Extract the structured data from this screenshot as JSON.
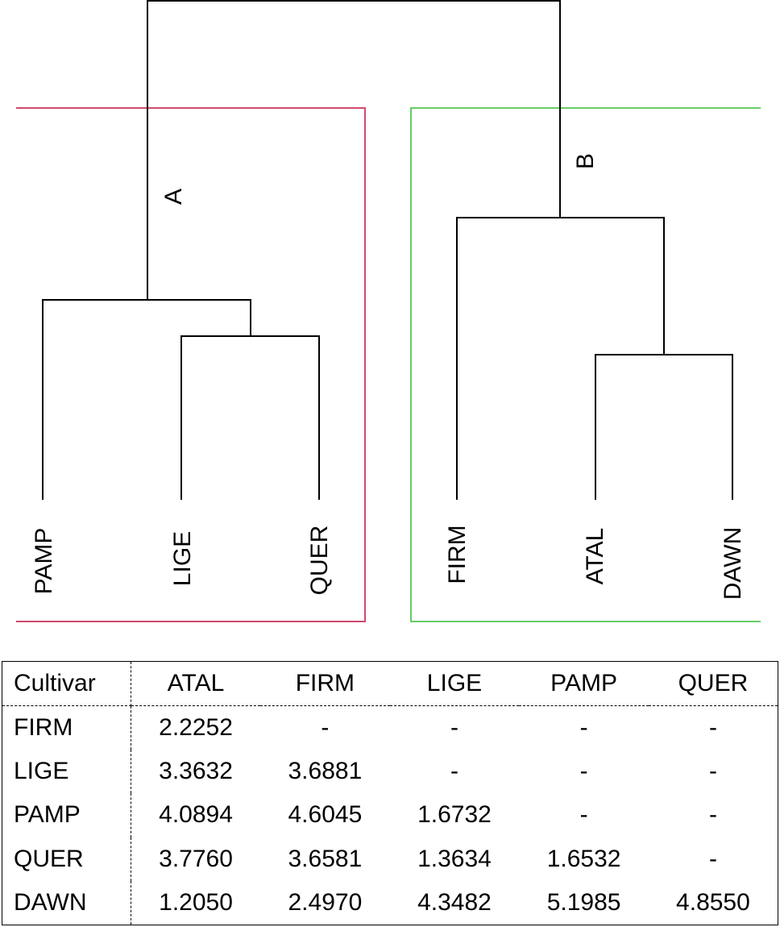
{
  "dendrogram": {
    "clusters": [
      {
        "label": "A",
        "color": "#d04a6e",
        "leaves": [
          "PAMP",
          "LIGE",
          "QUER"
        ]
      },
      {
        "label": "B",
        "color": "#66cc66",
        "leaves": [
          "FIRM",
          "ATAL",
          "DAWN"
        ]
      }
    ],
    "line_color": "#000000"
  },
  "table": {
    "corner_label": "Cultivar",
    "columns": [
      "ATAL",
      "FIRM",
      "LIGE",
      "PAMP",
      "QUER"
    ],
    "rows": [
      {
        "label": "FIRM",
        "values": [
          "2.2252",
          "-",
          "-",
          "-",
          "-"
        ]
      },
      {
        "label": "LIGE",
        "values": [
          "3.3632",
          "3.6881",
          "-",
          "-",
          "-"
        ]
      },
      {
        "label": "PAMP",
        "values": [
          "4.0894",
          "4.6045",
          "1.6732",
          "-",
          "-"
        ]
      },
      {
        "label": "QUER",
        "values": [
          "3.7760",
          "3.6581",
          "1.3634",
          "1.6532",
          "-"
        ]
      },
      {
        "label": "DAWN",
        "values": [
          "1.2050",
          "2.4970",
          "4.3482",
          "5.1985",
          "4.8550"
        ]
      }
    ]
  }
}
